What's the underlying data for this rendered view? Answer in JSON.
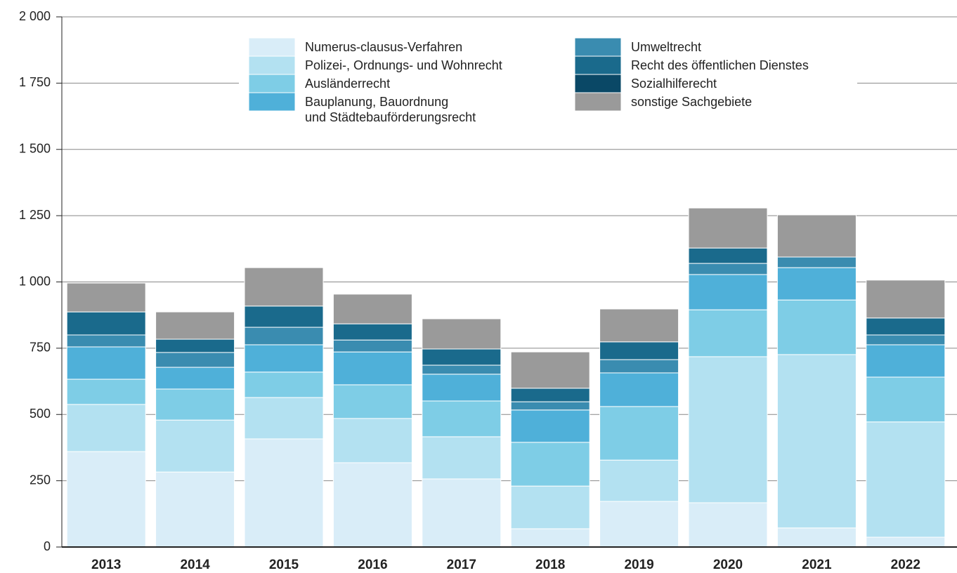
{
  "chart_data": {
    "type": "stacked_bar",
    "categories": [
      "2013",
      "2014",
      "2015",
      "2016",
      "2017",
      "2018",
      "2019",
      "2020",
      "2021",
      "2022"
    ],
    "series": [
      {
        "name": "Numerus-clausus-Verfahren",
        "color": "#d9edf8",
        "values": [
          360,
          283,
          408,
          318,
          257,
          69,
          172,
          167,
          72,
          37
        ]
      },
      {
        "name": "Polizei-, Ordnungs- und Wohnrecht",
        "color": "#b3e1f1",
        "values": [
          178,
          196,
          156,
          167,
          159,
          161,
          156,
          551,
          654,
          435
        ]
      },
      {
        "name": "Ausländerrecht",
        "color": "#7ecde6",
        "values": [
          95,
          117,
          96,
          127,
          135,
          165,
          202,
          177,
          206,
          169
        ]
      },
      {
        "name": "Bauplanung, Bauordnung\nund Städtebauförderungsrecht",
        "color": "#4fb0d9",
        "values": [
          122,
          82,
          103,
          124,
          101,
          122,
          127,
          133,
          122,
          122
        ]
      },
      {
        "name": "Umweltrecht",
        "color": "#3a8cb0",
        "values": [
          45,
          56,
          66,
          45,
          34,
          31,
          50,
          42,
          40,
          37
        ]
      },
      {
        "name": "Recht des öffentlichen Dienstes",
        "color": "#1a6a8c",
        "values": [
          87,
          50,
          80,
          61,
          61,
          51,
          67,
          58,
          0,
          64
        ]
      },
      {
        "name": "Sozialhilferecht",
        "color": "#0a4866",
        "values": [
          0,
          0,
          0,
          0,
          0,
          0,
          0,
          0,
          0,
          0
        ]
      },
      {
        "name": "sonstige Sachgebiete",
        "color": "#9a9a9a",
        "values": [
          109,
          103,
          145,
          112,
          114,
          137,
          124,
          151,
          159,
          143
        ]
      }
    ],
    "ylim": [
      0,
      2000
    ],
    "yticks": [
      0,
      250,
      500,
      750,
      {
        "value": 1000,
        "label": "1 000"
      },
      {
        "value": 1250,
        "label": "1 250"
      },
      {
        "value": 1500,
        "label": "1 500"
      },
      {
        "value": 1750,
        "label": "1 750"
      },
      {
        "value": 2000,
        "label": "2 000"
      }
    ],
    "grid": true
  }
}
